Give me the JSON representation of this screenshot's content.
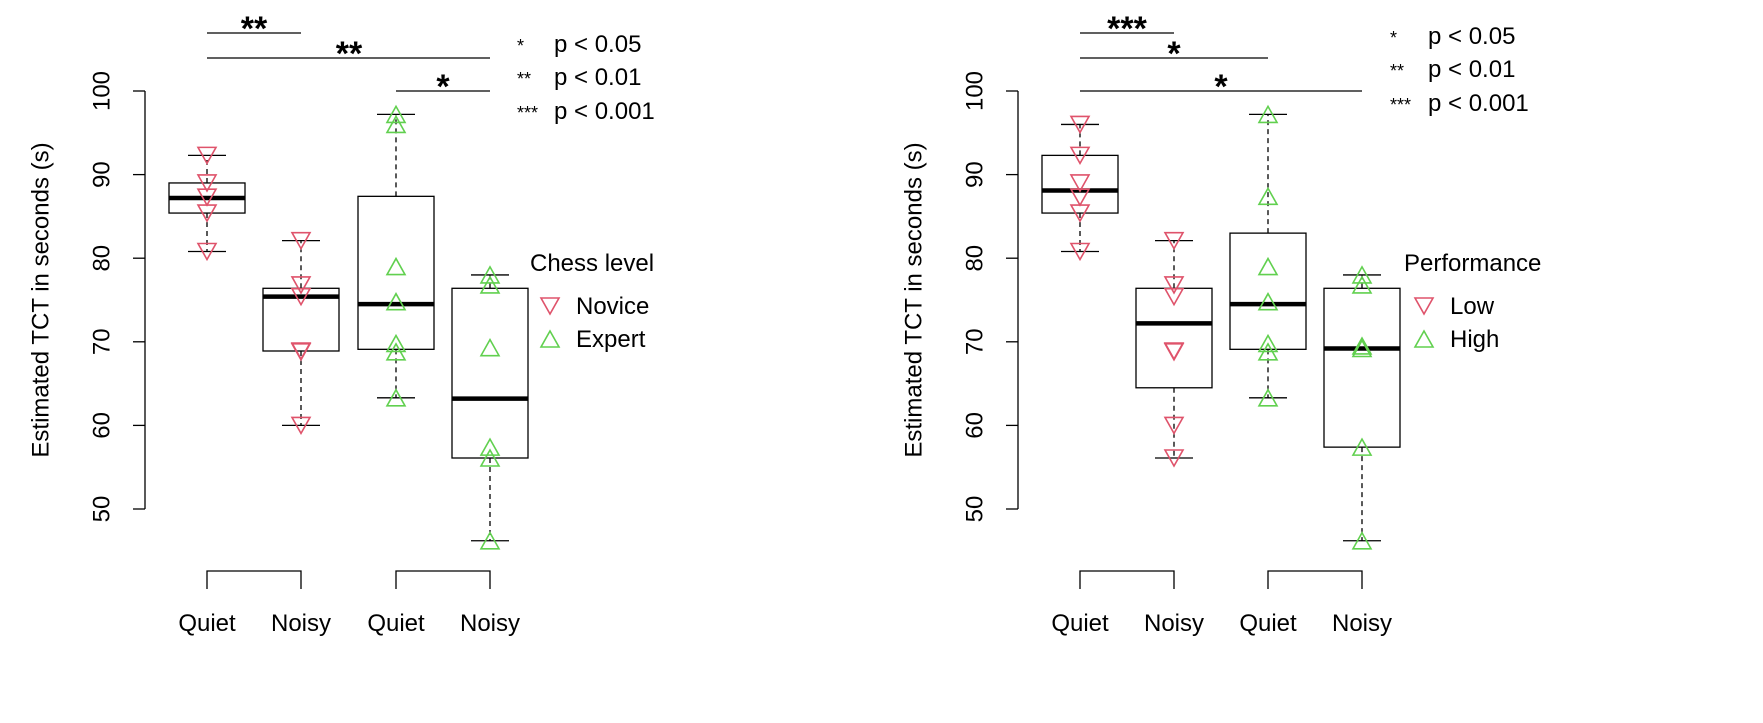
{
  "colors": {
    "low": "#DF536B",
    "high": "#61D04F",
    "ink": "#000000"
  },
  "chart_data": [
    {
      "type": "box",
      "ylabel": "Estimated TCT in seconds (s)",
      "ylim": [
        45,
        100
      ],
      "yticks": [
        50,
        60,
        70,
        80,
        90,
        100
      ],
      "categories": [
        "Quiet",
        "Noisy",
        "Quiet",
        "Noisy"
      ],
      "boxes": [
        {
          "category": "Quiet",
          "whisker_low": 80.8,
          "q1": 85.4,
          "median": 87.2,
          "q3": 89.0,
          "whisker_high": 92.3
        },
        {
          "category": "Noisy",
          "whisker_low": 60.0,
          "q1": 68.9,
          "median": 75.4,
          "q3": 76.4,
          "whisker_high": 82.1
        },
        {
          "category": "Quiet",
          "whisker_low": 63.3,
          "q1": 69.1,
          "median": 74.5,
          "q3": 87.4,
          "whisker_high": 97.2
        },
        {
          "category": "Noisy",
          "whisker_low": 46.2,
          "q1": 56.1,
          "median": 63.2,
          "q3": 76.4,
          "whisker_high": 78.0
        }
      ],
      "points": [
        {
          "group": 1,
          "y": 92.3,
          "level": "low"
        },
        {
          "group": 1,
          "y": 89.0,
          "level": "low"
        },
        {
          "group": 1,
          "y": 87.3,
          "level": "low"
        },
        {
          "group": 1,
          "y": 85.4,
          "level": "low"
        },
        {
          "group": 1,
          "y": 80.8,
          "level": "low"
        },
        {
          "group": 2,
          "y": 82.1,
          "level": "low"
        },
        {
          "group": 2,
          "y": 76.8,
          "level": "low"
        },
        {
          "group": 2,
          "y": 75.4,
          "level": "low"
        },
        {
          "group": 2,
          "y": 68.9,
          "level": "low"
        },
        {
          "group": 2,
          "y": 68.8,
          "level": "low"
        },
        {
          "group": 2,
          "y": 60.0,
          "level": "low"
        },
        {
          "group": 3,
          "y": 97.2,
          "level": "high"
        },
        {
          "group": 3,
          "y": 96.0,
          "level": "high"
        },
        {
          "group": 3,
          "y": 79.0,
          "level": "high"
        },
        {
          "group": 3,
          "y": 74.8,
          "level": "high"
        },
        {
          "group": 3,
          "y": 69.8,
          "level": "high"
        },
        {
          "group": 3,
          "y": 68.8,
          "level": "high"
        },
        {
          "group": 3,
          "y": 63.3,
          "level": "high"
        },
        {
          "group": 4,
          "y": 78.0,
          "level": "high"
        },
        {
          "group": 4,
          "y": 76.8,
          "level": "high"
        },
        {
          "group": 4,
          "y": 69.3,
          "level": "high"
        },
        {
          "group": 4,
          "y": 57.4,
          "level": "high"
        },
        {
          "group": 4,
          "y": 56.1,
          "level": "high"
        },
        {
          "group": 4,
          "y": 46.2,
          "level": "high"
        }
      ],
      "significance": [
        {
          "from": 1,
          "to": 2,
          "label": "**"
        },
        {
          "from": 1,
          "to": 4,
          "label": "**"
        },
        {
          "from": 3,
          "to": 4,
          "label": "*"
        }
      ],
      "pvalue_key": [
        {
          "stars": "*",
          "text": "p < 0.05"
        },
        {
          "stars": "**",
          "text": "p < 0.01"
        },
        {
          "stars": "***",
          "text": "p < 0.001"
        }
      ],
      "legend": {
        "title": "Chess level",
        "entries": [
          {
            "label": "Novice",
            "level": "low"
          },
          {
            "label": "Expert",
            "level": "high"
          }
        ]
      },
      "legend_position": "right"
    },
    {
      "type": "box",
      "ylabel": "Estimated TCT in seconds (s)",
      "ylim": [
        45,
        100
      ],
      "yticks": [
        50,
        60,
        70,
        80,
        90,
        100
      ],
      "categories": [
        "Quiet",
        "Noisy",
        "Quiet",
        "Noisy"
      ],
      "boxes": [
        {
          "category": "Quiet",
          "whisker_low": 80.8,
          "q1": 85.4,
          "median": 88.1,
          "q3": 92.3,
          "whisker_high": 96.0
        },
        {
          "category": "Noisy",
          "whisker_low": 56.1,
          "q1": 64.5,
          "median": 72.2,
          "q3": 76.4,
          "whisker_high": 82.1
        },
        {
          "category": "Quiet",
          "whisker_low": 63.3,
          "q1": 69.1,
          "median": 74.5,
          "q3": 83.0,
          "whisker_high": 97.2
        },
        {
          "category": "Noisy",
          "whisker_low": 46.2,
          "q1": 57.4,
          "median": 69.2,
          "q3": 76.4,
          "whisker_high": 78.0
        }
      ],
      "points": [
        {
          "group": 1,
          "y": 96.0,
          "level": "low"
        },
        {
          "group": 1,
          "y": 92.3,
          "level": "low"
        },
        {
          "group": 1,
          "y": 89.0,
          "level": "low"
        },
        {
          "group": 1,
          "y": 87.3,
          "level": "low"
        },
        {
          "group": 1,
          "y": 85.4,
          "level": "low"
        },
        {
          "group": 1,
          "y": 80.8,
          "level": "low"
        },
        {
          "group": 2,
          "y": 82.1,
          "level": "low"
        },
        {
          "group": 2,
          "y": 76.8,
          "level": "low"
        },
        {
          "group": 2,
          "y": 75.4,
          "level": "low"
        },
        {
          "group": 2,
          "y": 68.9,
          "level": "low"
        },
        {
          "group": 2,
          "y": 68.8,
          "level": "low"
        },
        {
          "group": 2,
          "y": 60.0,
          "level": "low"
        },
        {
          "group": 2,
          "y": 56.1,
          "level": "low"
        },
        {
          "group": 3,
          "y": 97.2,
          "level": "high"
        },
        {
          "group": 3,
          "y": 87.4,
          "level": "high"
        },
        {
          "group": 3,
          "y": 79.0,
          "level": "high"
        },
        {
          "group": 3,
          "y": 74.8,
          "level": "high"
        },
        {
          "group": 3,
          "y": 69.8,
          "level": "high"
        },
        {
          "group": 3,
          "y": 68.8,
          "level": "high"
        },
        {
          "group": 3,
          "y": 63.3,
          "level": "high"
        },
        {
          "group": 4,
          "y": 78.0,
          "level": "high"
        },
        {
          "group": 4,
          "y": 76.8,
          "level": "high"
        },
        {
          "group": 4,
          "y": 69.5,
          "level": "high"
        },
        {
          "group": 4,
          "y": 69.2,
          "level": "high"
        },
        {
          "group": 4,
          "y": 57.4,
          "level": "high"
        },
        {
          "group": 4,
          "y": 46.2,
          "level": "high"
        }
      ],
      "significance": [
        {
          "from": 1,
          "to": 2,
          "label": "***"
        },
        {
          "from": 1,
          "to": 3,
          "label": "*"
        },
        {
          "from": 1,
          "to": 4,
          "label": "*"
        }
      ],
      "pvalue_key": [
        {
          "stars": "*",
          "text": "p < 0.05"
        },
        {
          "stars": "**",
          "text": "p < 0.01"
        },
        {
          "stars": "***",
          "text": "p < 0.001"
        }
      ],
      "legend": {
        "title": "Performance",
        "entries": [
          {
            "label": "Low",
            "level": "low"
          },
          {
            "label": "High",
            "level": "high"
          }
        ]
      },
      "legend_position": "right"
    }
  ]
}
